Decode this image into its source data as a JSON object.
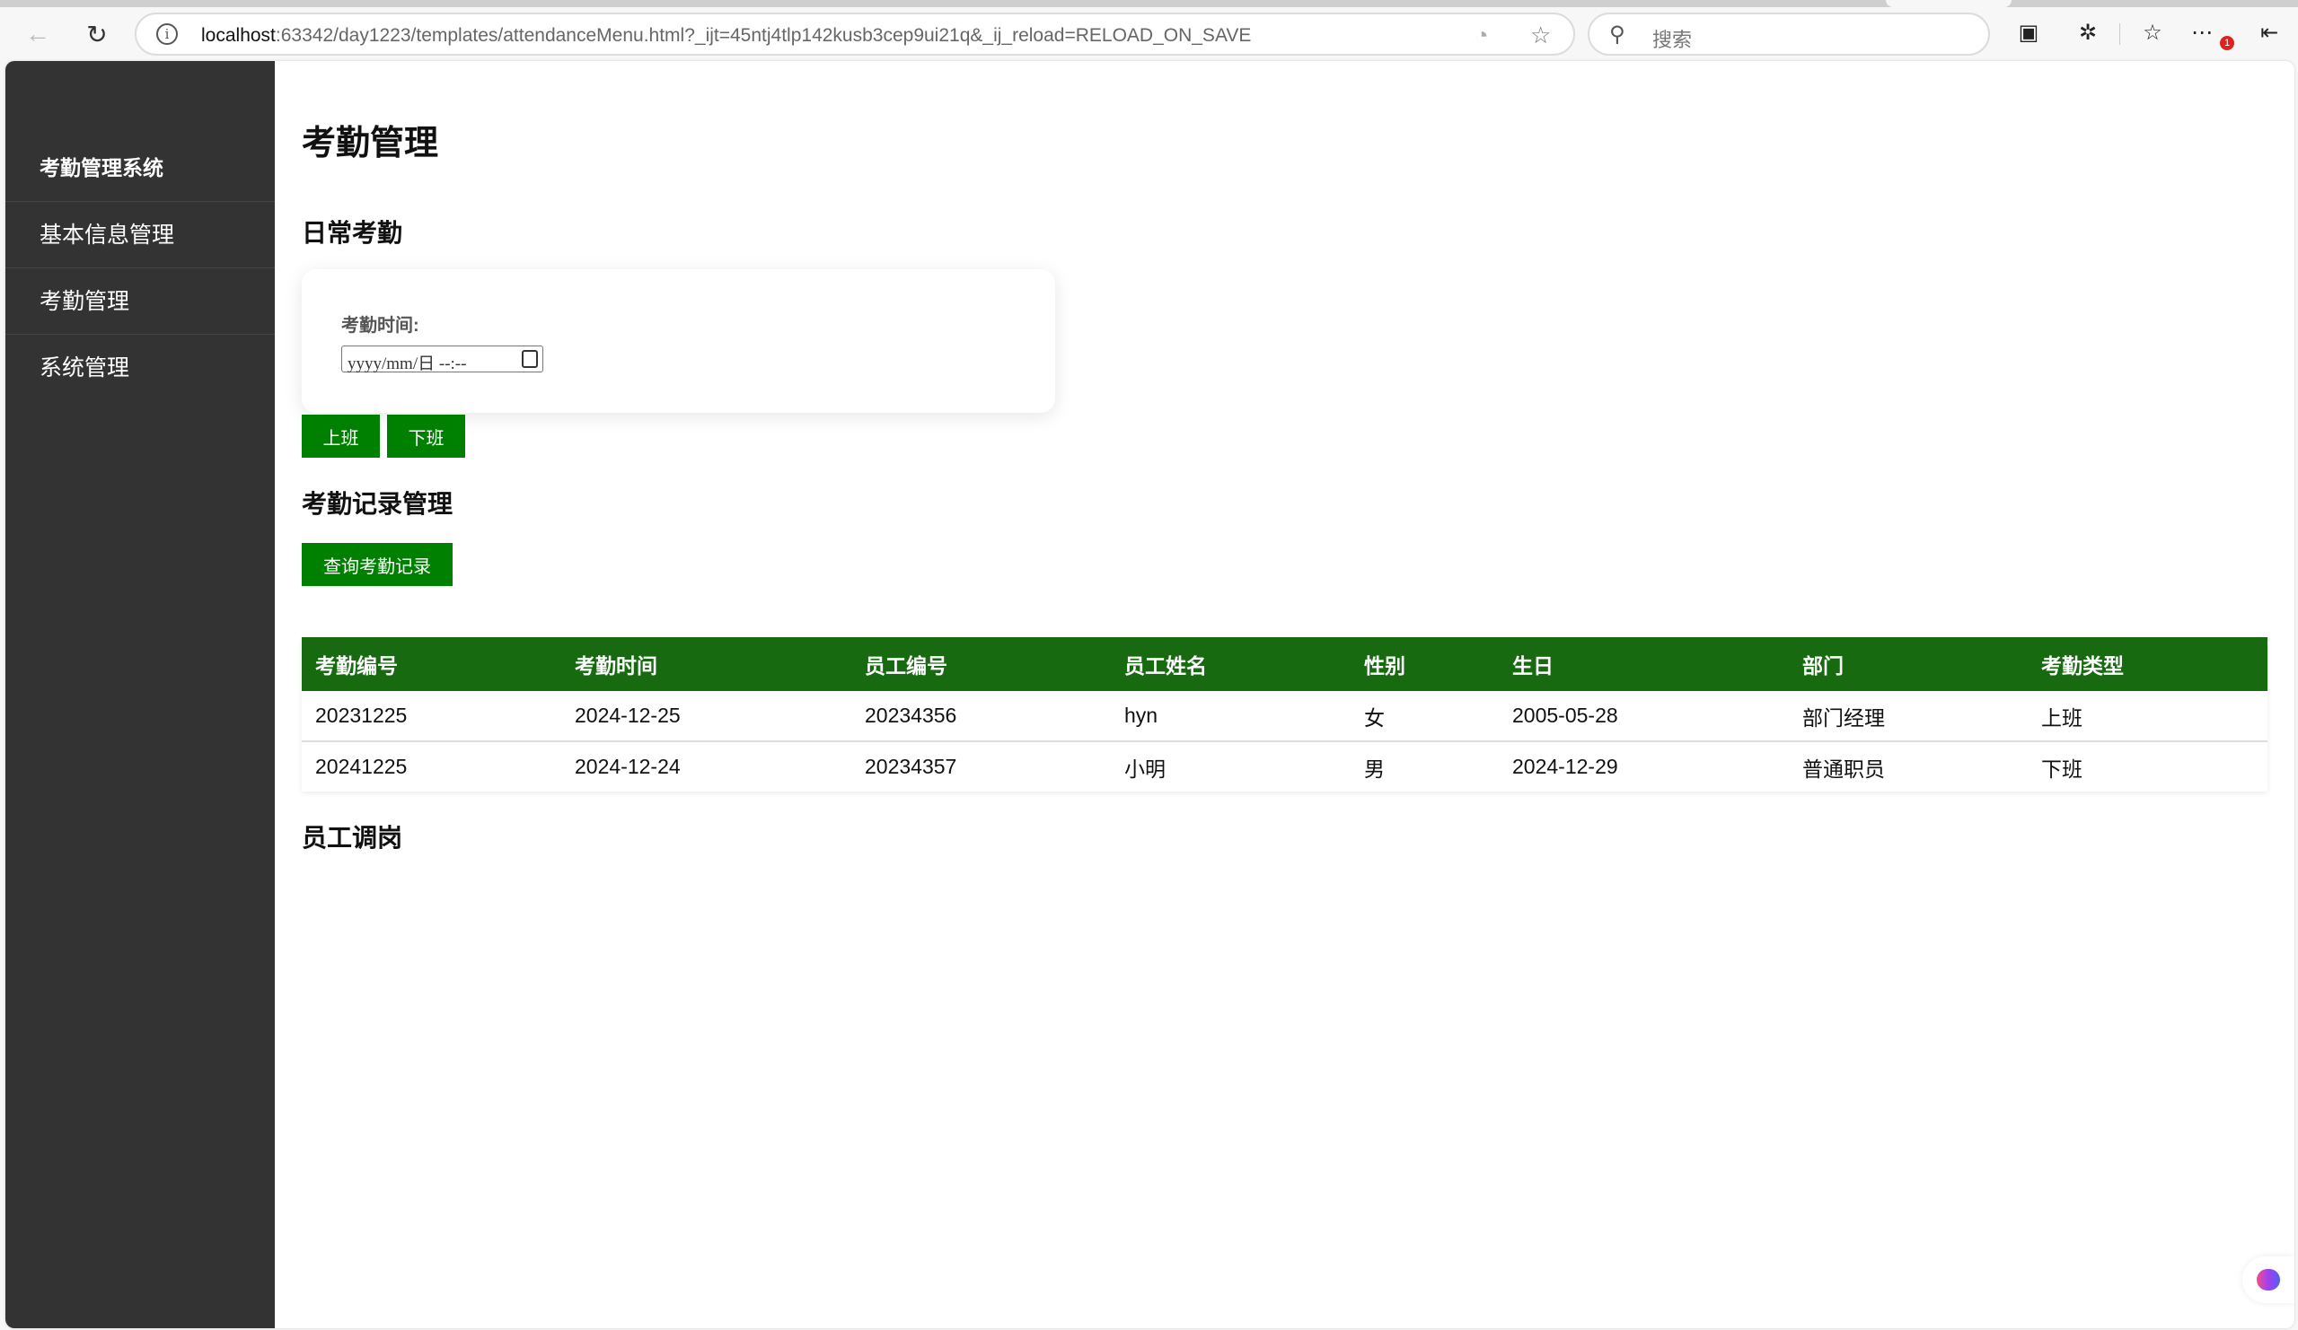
{
  "browser": {
    "url_host": "localhost",
    "url_rest": ":63342/day1223/templates/attendanceMenu.html?_ijt=45ntj4tlp142kusb3cep9ui21q&_ij_reload=RELOAD_ON_SAVE",
    "search_placeholder": "搜索",
    "notification_count": "1"
  },
  "sidebar": {
    "title": "考勤管理系统",
    "items": [
      {
        "label": "基本信息管理"
      },
      {
        "label": "考勤管理"
      },
      {
        "label": "系统管理"
      }
    ]
  },
  "main": {
    "title": "考勤管理",
    "daily": {
      "heading": "日常考勤",
      "time_label": "考勤时间:",
      "datetime_placeholder": "yyyy/mm/日 --:--",
      "clock_in": "上班",
      "clock_out": "下班"
    },
    "records": {
      "heading": "考勤记录管理",
      "query_button": "查询考勤记录",
      "columns": [
        "考勤编号",
        "考勤时间",
        "员工编号",
        "员工姓名",
        "性别",
        "生日",
        "部门",
        "考勤类型"
      ],
      "rows": [
        [
          "20231225",
          "2024-12-25",
          "20234356",
          "hyn",
          "女",
          "2005-05-28",
          "部门经理",
          "上班"
        ],
        [
          "20241225",
          "2024-12-24",
          "20234357",
          "小明",
          "男",
          "2024-12-29",
          "普通职员",
          "下班"
        ]
      ]
    },
    "transfer": {
      "heading": "员工调岗"
    }
  },
  "colors": {
    "sidebar": "#333333",
    "table_header": "#186a11",
    "button": "#008000"
  }
}
